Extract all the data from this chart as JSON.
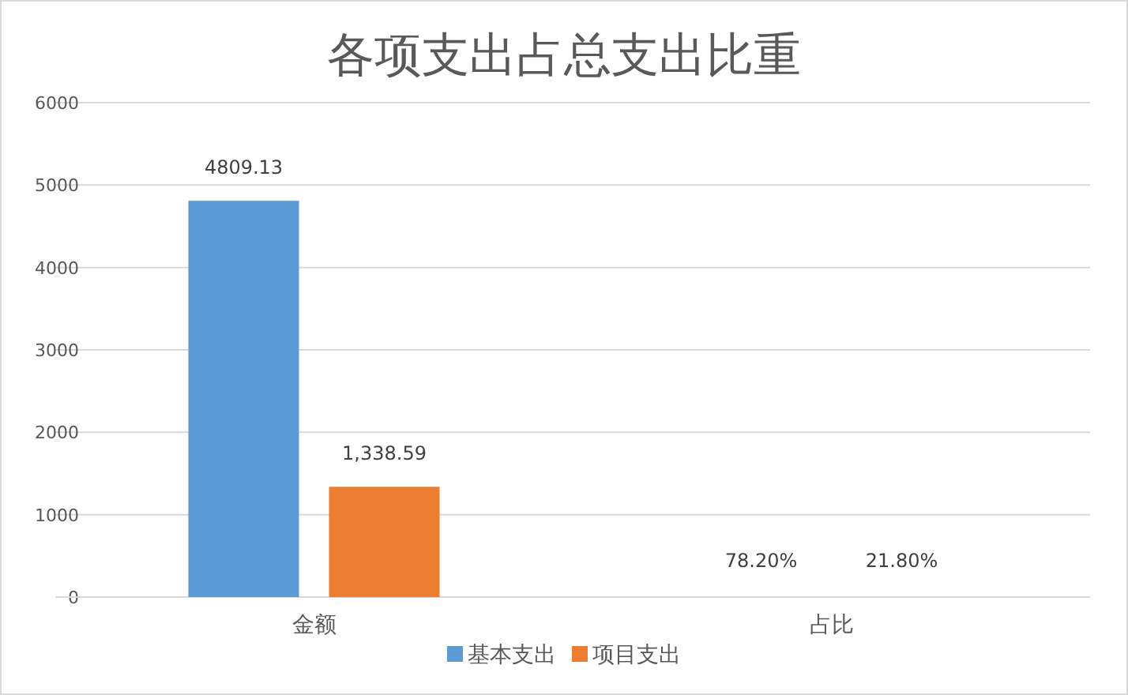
{
  "chart_data": {
    "type": "bar",
    "title": "各项支出占总支出比重",
    "categories": [
      "金额",
      "占比"
    ],
    "series": [
      {
        "name": "基本支出",
        "color": "#5b9bd5",
        "values": [
          4809.13,
          0.782
        ],
        "value_labels": [
          "4809.13",
          "78.20%"
        ]
      },
      {
        "name": "项目支出",
        "color": "#ed7d31",
        "values": [
          1338.59,
          0.218
        ],
        "value_labels": [
          "1,338.59",
          "21.80%"
        ]
      }
    ],
    "ylim": [
      0,
      6000
    ],
    "yticks": [
      0,
      1000,
      2000,
      3000,
      4000,
      5000,
      6000
    ],
    "grid": "y",
    "legend": "bottom"
  }
}
